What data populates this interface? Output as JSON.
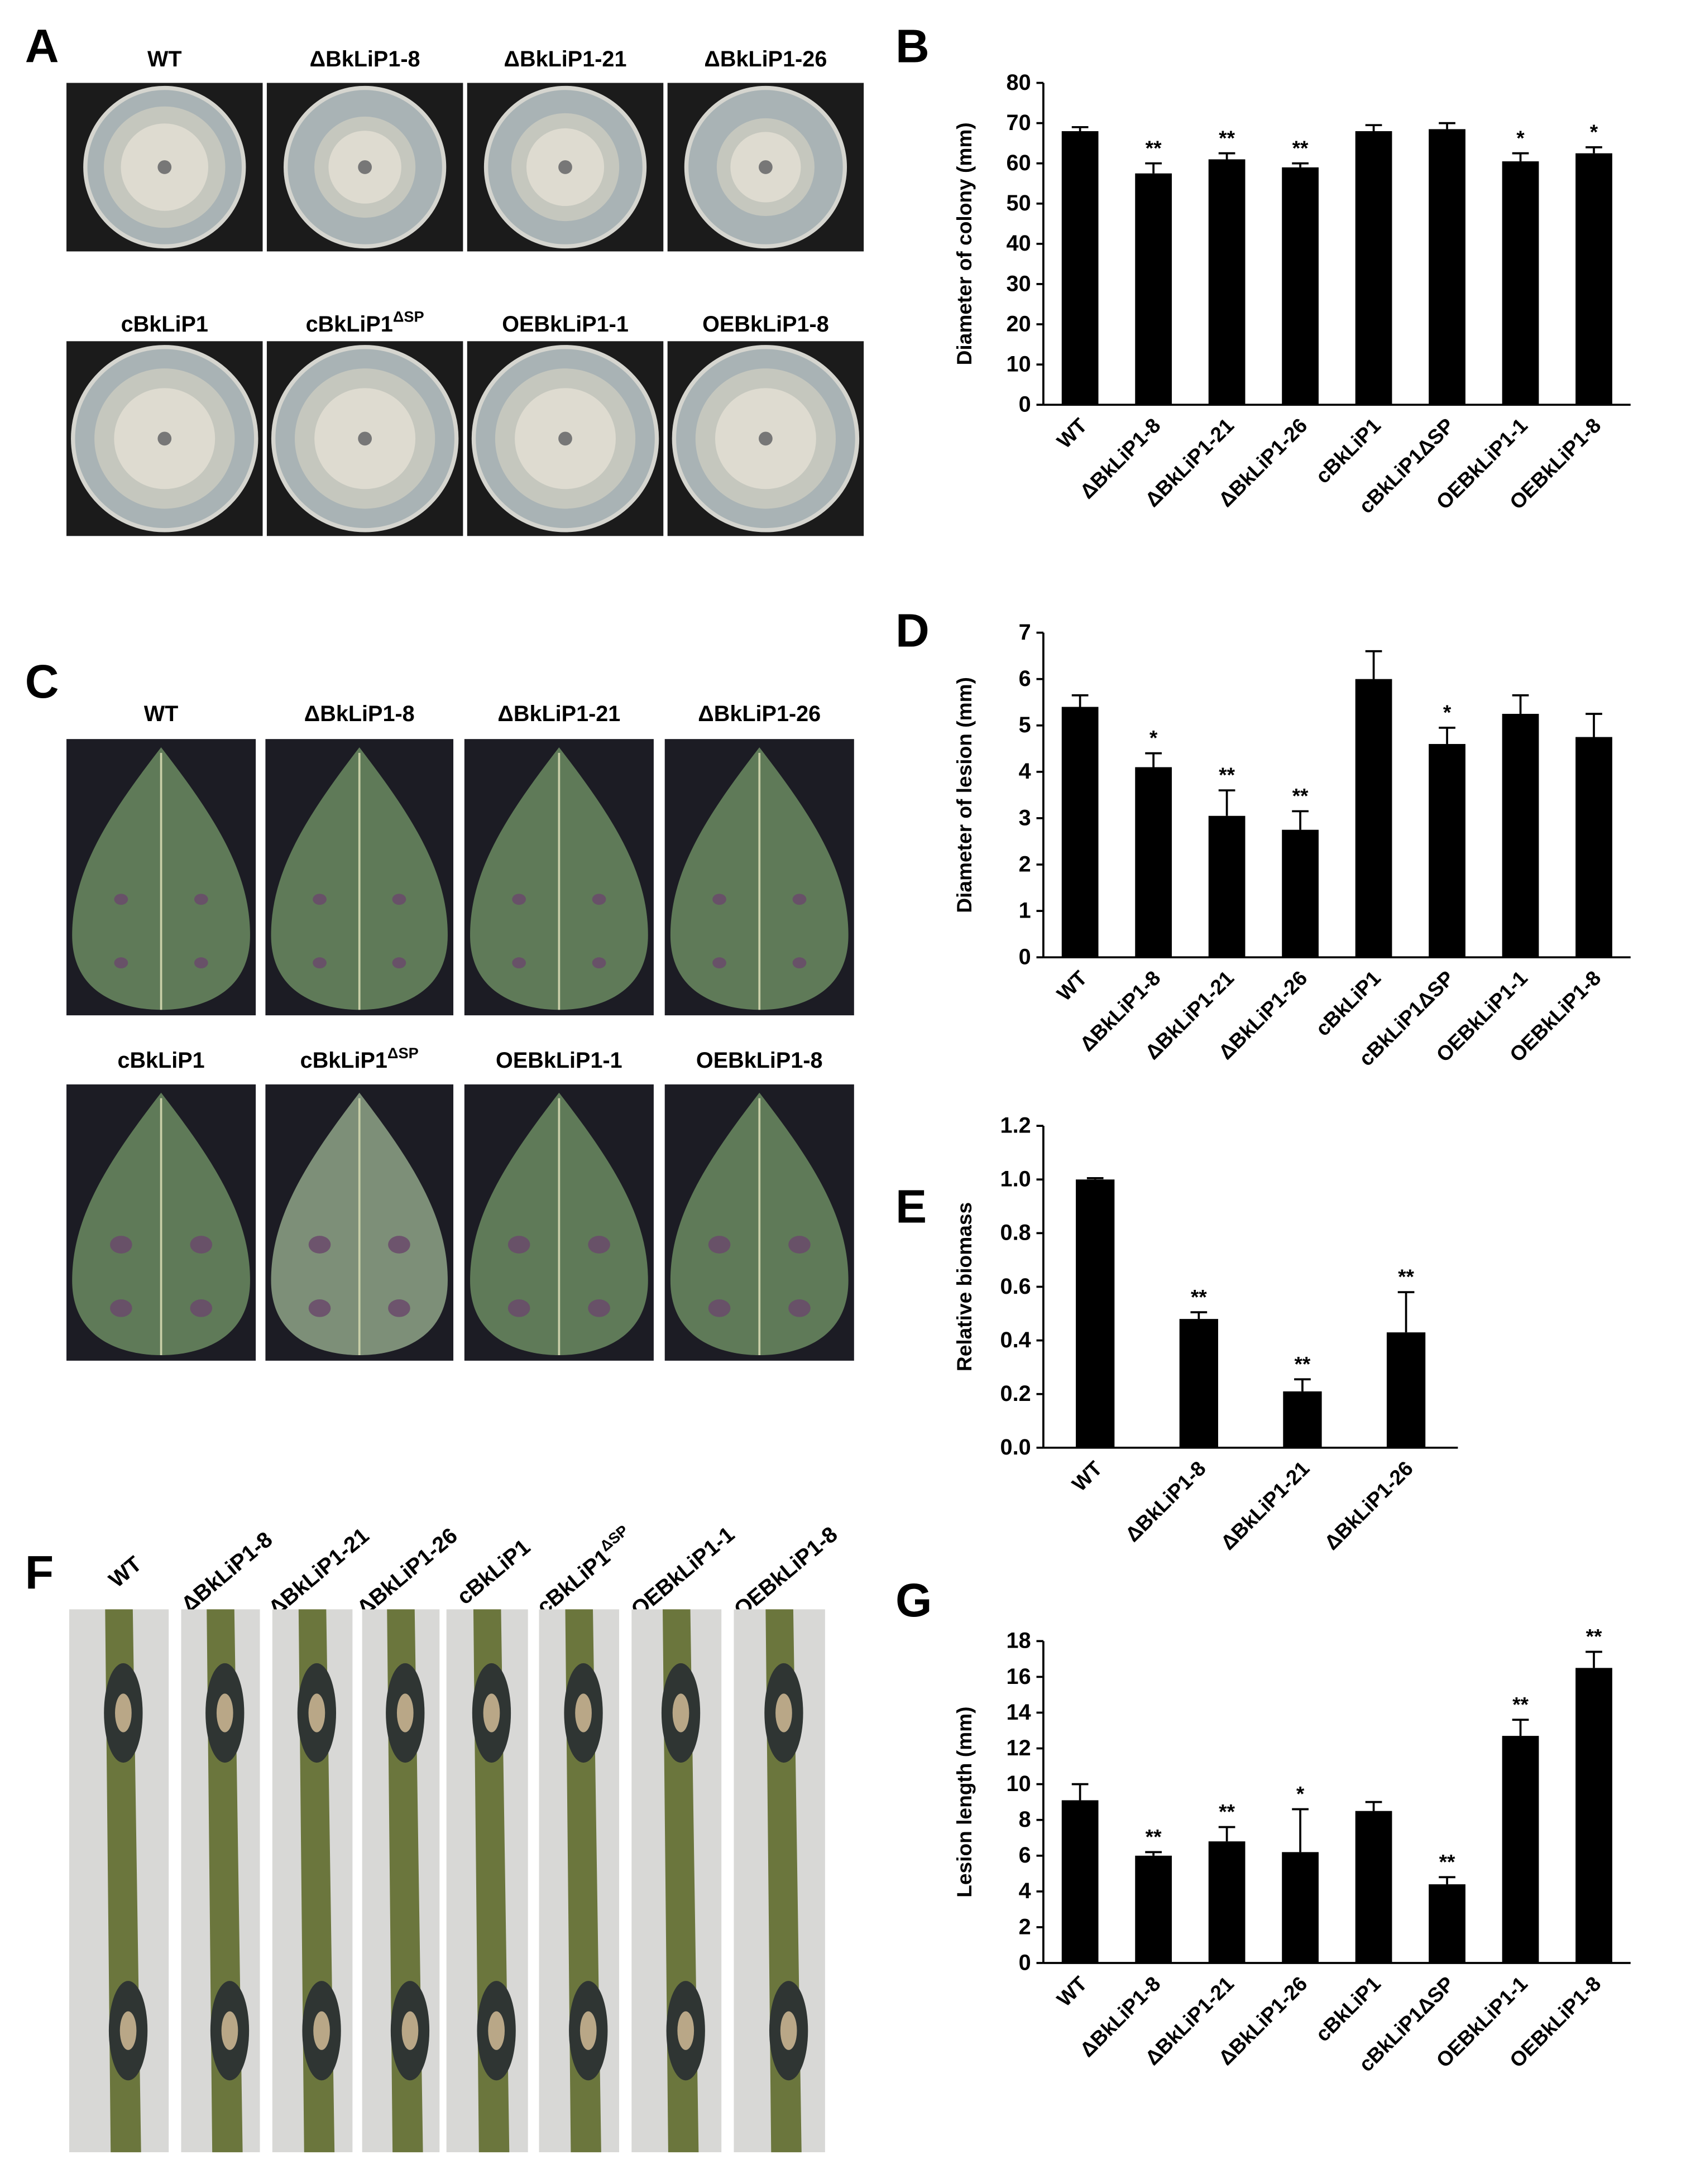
{
  "panel_letters": [
    "A",
    "B",
    "C",
    "D",
    "E",
    "F",
    "G"
  ],
  "photo_panels": [
    {
      "kind": "dish",
      "labels": [
        "WT",
        "ΔBkLiP1-8",
        "ΔBkLiP1-21",
        "ΔBkLiP1-26",
        "cBkLiP1",
        {
          "text": "cBkLiP1",
          "sup": "ΔSP"
        },
        "OEBkLiP1-1",
        "OEBkLiP1-8"
      ]
    },
    {
      "kind": "leaf",
      "labels": [
        "WT",
        "ΔBkLiP1-8",
        "ΔBkLiP1-21",
        "ΔBkLiP1-26",
        "cBkLiP1",
        {
          "text": "cBkLiP1",
          "sup": "ΔSP"
        },
        "OEBkLiP1-1",
        "OEBkLiP1-8"
      ]
    },
    {
      "kind": "stem",
      "labels": [
        "WT",
        "ΔBkLiP1-8",
        "ΔBkLiP1-21",
        "ΔBkLiP1-26",
        "cBkLiP1",
        {
          "text": "cBkLiP1",
          "sup": "ΔSP"
        },
        "OEBkLiP1-1",
        "OEBkLiP1-8"
      ]
    }
  ],
  "chart_data": [
    {
      "type": "bar",
      "ylabel": "Diameter of colony (mm)",
      "color": "#000000",
      "categories": [
        "WT",
        "ΔBkLiP1-8",
        "ΔBkLiP1-21",
        "ΔBkLiP1-26",
        "cBkLiP1",
        "cBkLiP1ΔSP",
        "OEBkLiP1-1",
        "OEBkLiP1-8"
      ],
      "values": [
        68,
        57.5,
        61,
        59,
        68,
        68.5,
        60.5,
        62.5
      ],
      "errors": [
        1,
        2.5,
        1.5,
        1,
        1.5,
        1.5,
        2,
        1.5
      ],
      "annotations": [
        null,
        "**",
        "**",
        "**",
        null,
        null,
        "*",
        "*"
      ],
      "ylim": [
        0,
        80
      ],
      "yticks": [
        0,
        10,
        20,
        30,
        40,
        50,
        60,
        70,
        80
      ]
    },
    {
      "type": "bar",
      "ylabel": "Diameter of lesion (mm)",
      "color": "#000000",
      "categories": [
        "WT",
        "ΔBkLiP1-8",
        "ΔBkLiP1-21",
        "ΔBkLiP1-26",
        "cBkLiP1",
        "cBkLiP1ΔSP",
        "OEBkLiP1-1",
        "OEBkLiP1-8"
      ],
      "values": [
        5.4,
        4.1,
        3.05,
        2.75,
        6.0,
        4.6,
        5.25,
        4.75
      ],
      "errors": [
        0.25,
        0.3,
        0.55,
        0.4,
        0.6,
        0.35,
        0.4,
        0.5
      ],
      "annotations": [
        null,
        "*",
        "**",
        "**",
        null,
        "*",
        null,
        null
      ],
      "ylim": [
        0,
        7
      ],
      "yticks": [
        0,
        1,
        2,
        3,
        4,
        5,
        6,
        7
      ]
    },
    {
      "type": "bar",
      "ylabel": "Relative biomass",
      "color": "#000000",
      "categories": [
        "WT",
        "ΔBkLiP1-8",
        "ΔBkLiP1-21",
        "ΔBkLiP1-26"
      ],
      "values": [
        1.0,
        0.48,
        0.21,
        0.43
      ],
      "errors": [
        0.005,
        0.025,
        0.045,
        0.15
      ],
      "annotations": [
        null,
        "**",
        "**",
        "**"
      ],
      "ylim": [
        0,
        1.2
      ],
      "yticks": [
        {
          "value": 0,
          "label": "0.0"
        },
        0.2,
        0.4,
        0.6,
        0.8,
        {
          "value": 1,
          "label": "1.0"
        },
        1.2
      ]
    },
    {
      "type": "bar",
      "ylabel": "Lesion length (mm)",
      "color": "#000000",
      "categories": [
        "WT",
        "ΔBkLiP1-8",
        "ΔBkLiP1-21",
        "ΔBkLiP1-26",
        "cBkLiP1",
        "cBkLiP1ΔSP",
        "OEBkLiP1-1",
        "OEBkLiP1-8"
      ],
      "values": [
        9.1,
        6.0,
        6.8,
        6.2,
        8.5,
        4.4,
        12.7,
        16.5
      ],
      "errors": [
        0.9,
        0.2,
        0.8,
        2.4,
        0.5,
        0.4,
        0.9,
        0.9
      ],
      "annotations": [
        null,
        "**",
        "**",
        "*",
        null,
        "**",
        "**",
        "**"
      ],
      "ylim": [
        0,
        18
      ],
      "yticks": [
        0,
        2,
        4,
        6,
        8,
        10,
        12,
        14,
        16,
        18
      ]
    }
  ]
}
